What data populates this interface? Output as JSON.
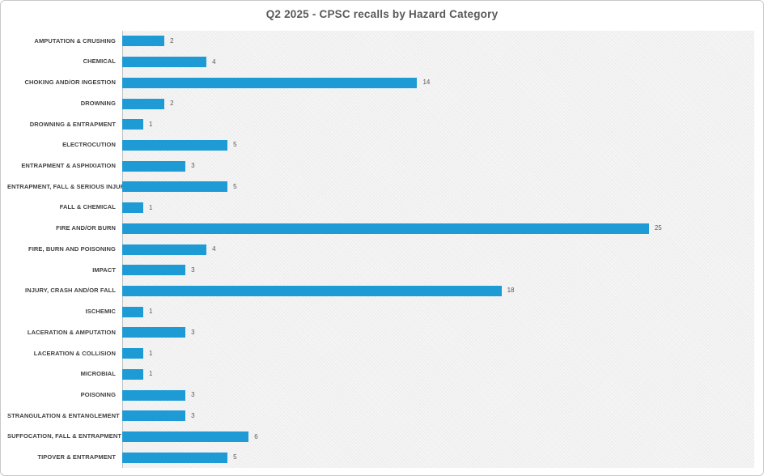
{
  "chart_data": {
    "type": "bar",
    "orientation": "horizontal",
    "title": "Q2 2025 - CPSC recalls by Hazard Category",
    "xlabel": "",
    "ylabel": "",
    "xlim": [
      0,
      30
    ],
    "grid": false,
    "data_labels": true,
    "legend": "none",
    "bar_color": "#1e9bd5",
    "categories": [
      "AMPUTATION & CRUSHING",
      "CHEMICAL",
      "CHOKING AND/OR INGESTION",
      "DROWNING",
      "DROWNING & ENTRAPMENT",
      "ELECTROCUTION",
      "ENTRAPMENT & ASPHIXIATION",
      "ENTRAPMENT, FALL & SERIOUS INJURY",
      "FALL & CHEMICAL",
      "FIRE AND/OR BURN",
      "FIRE, BURN AND POISONING",
      "IMPACT",
      "INJURY, CRASH AND/OR FALL",
      "ISCHEMIC",
      "LACERATION & AMPUTATION",
      "LACERATION & COLLISION",
      "MICROBIAL",
      "POISONING",
      "STRANGULATION & ENTANGLEMENT",
      "SUFFOCATION, FALL & ENTRAPMENT",
      "TIPOVER & ENTRAPMENT"
    ],
    "values": [
      2,
      4,
      14,
      2,
      1,
      5,
      3,
      5,
      1,
      25,
      4,
      3,
      18,
      1,
      3,
      1,
      1,
      3,
      3,
      6,
      5
    ]
  },
  "colors": {
    "bar": "#1e9bd5",
    "title_text": "#595959",
    "category_label": "#3f3f3f",
    "value_label": "#595959",
    "plot_background": "#f6f6f6",
    "axis_line": "#bfbfbf",
    "page_background": "#ffffff",
    "frame_border": "#c9c9c9"
  }
}
